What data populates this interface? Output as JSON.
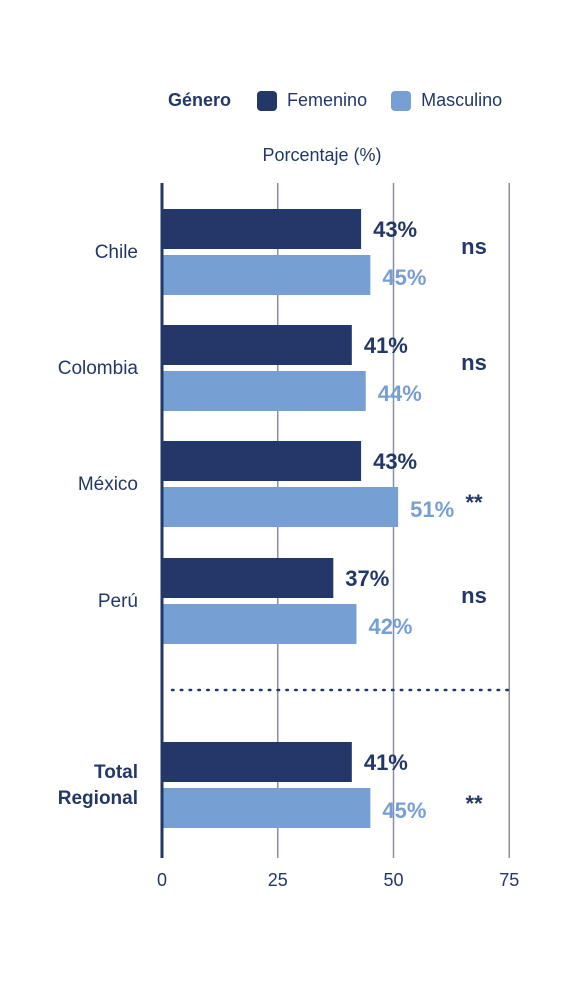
{
  "legend": {
    "title": "Género",
    "items": [
      {
        "label": "Femenino",
        "color": "#233868"
      },
      {
        "label": "Masculino",
        "color": "#769fd4"
      }
    ]
  },
  "chart_data": {
    "type": "bar",
    "orientation": "horizontal",
    "xlabel": "Porcentaje (%)",
    "xlim": [
      0,
      75
    ],
    "xticks": [
      0,
      25,
      50,
      75
    ],
    "grid": true,
    "legend_position": "top",
    "categories": [
      {
        "label": [
          "Chile"
        ],
        "bold": false
      },
      {
        "label": [
          "Colombia"
        ],
        "bold": false
      },
      {
        "label": [
          "México"
        ],
        "bold": false
      },
      {
        "label": [
          "Perú"
        ],
        "bold": false
      },
      {
        "label": [
          "Total",
          "Regional"
        ],
        "bold": true
      }
    ],
    "series": [
      {
        "name": "Femenino",
        "color": "#233868",
        "values": [
          43,
          41,
          43,
          37,
          41
        ],
        "labels": [
          "43%",
          "41%",
          "43%",
          "37%",
          "41%"
        ]
      },
      {
        "name": "Masculino",
        "color": "#769fd4",
        "values": [
          45,
          44,
          51,
          42,
          45
        ],
        "labels": [
          "45%",
          "44%",
          "51%",
          "42%",
          "45%"
        ]
      }
    ],
    "significance": [
      "ns",
      "ns",
      "**",
      "ns",
      "**"
    ],
    "separator_before_category": 4
  }
}
